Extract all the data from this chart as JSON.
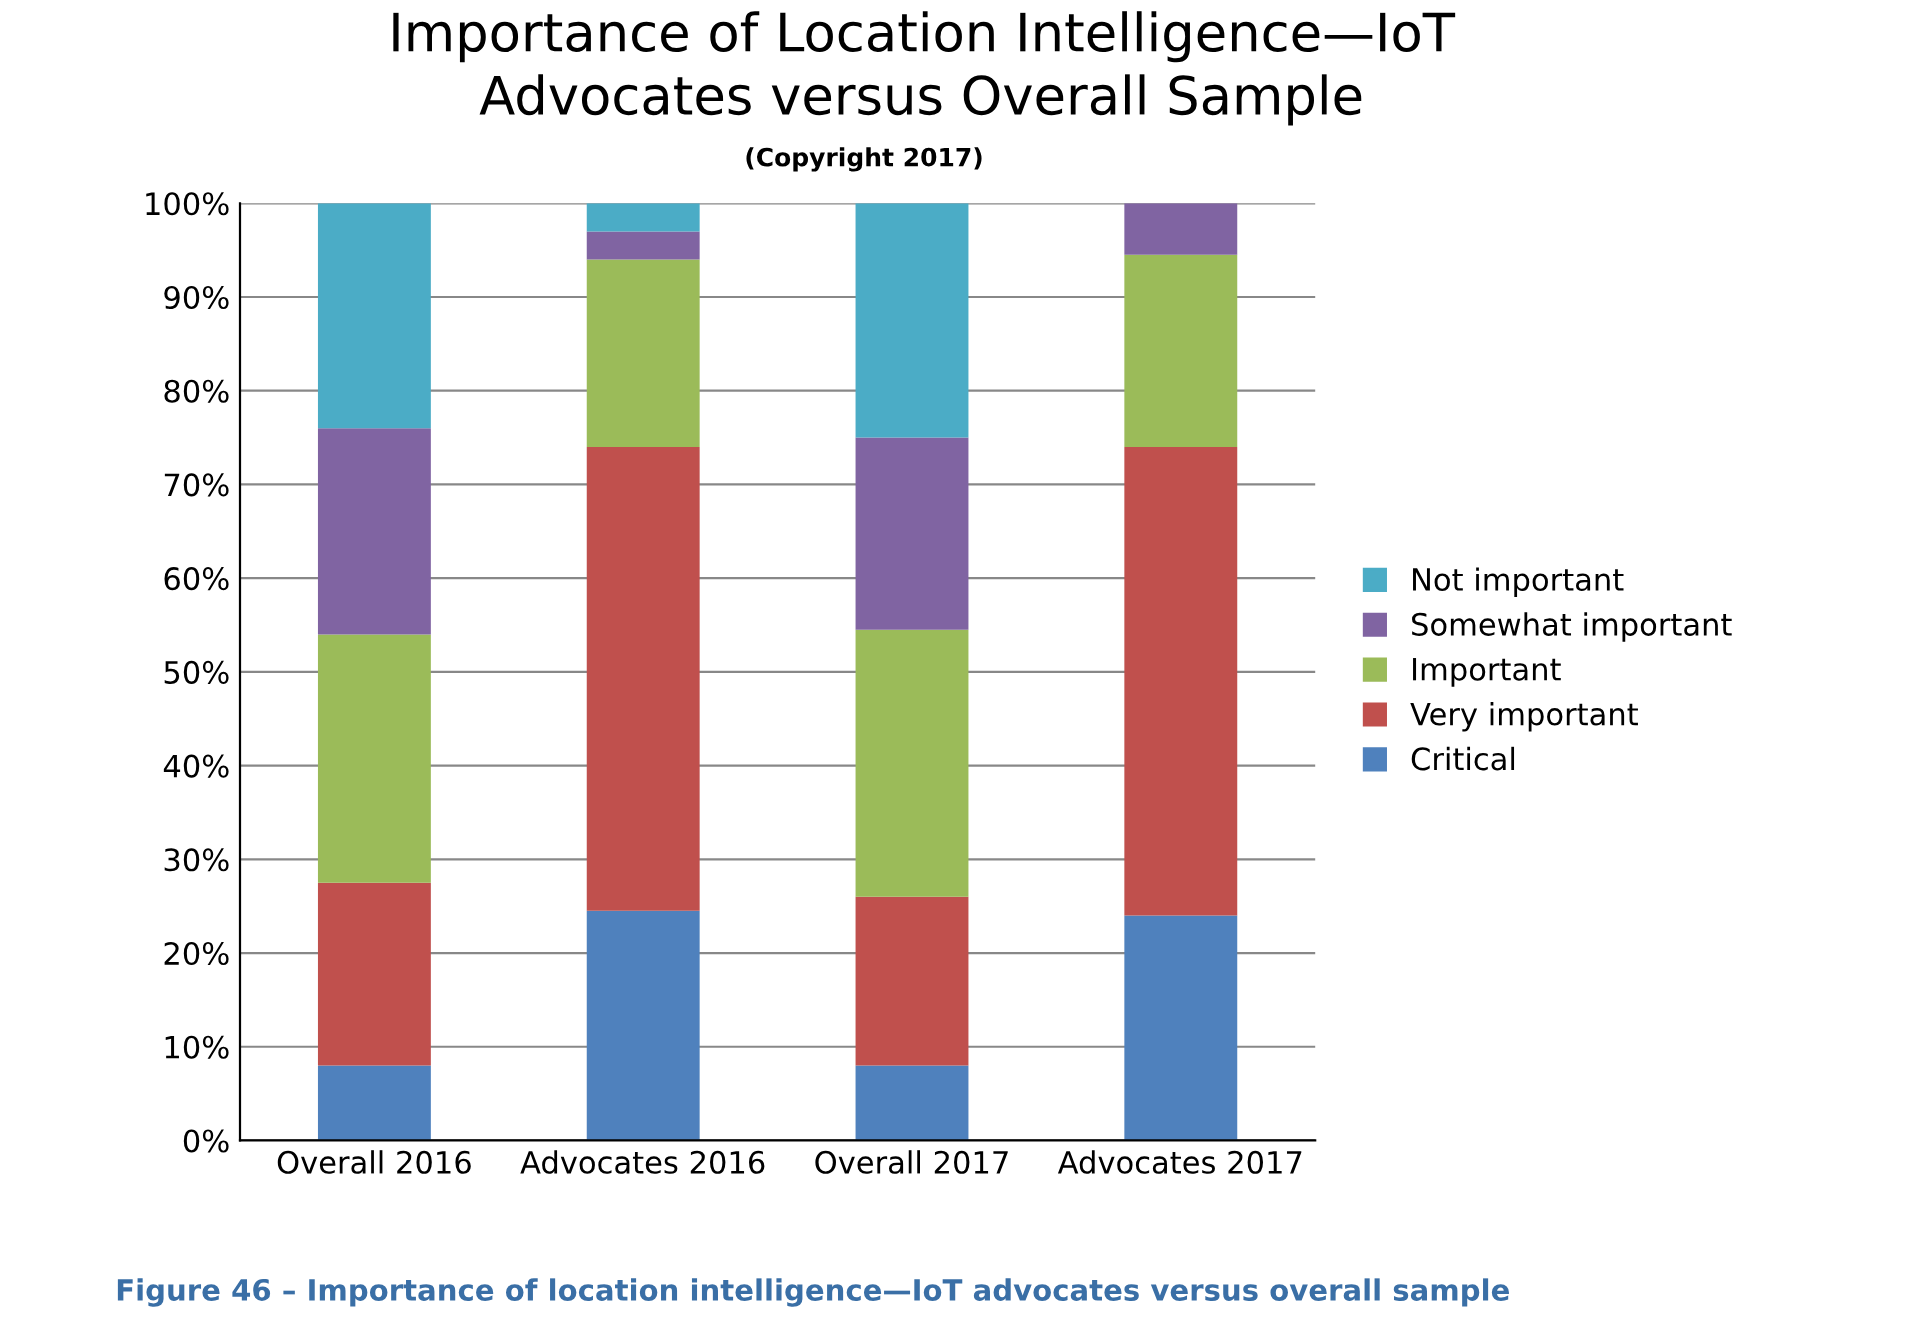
{
  "chart_data": {
    "type": "bar",
    "stacked": true,
    "title": "Importance of Location Intelligence—IoT\nAdvocates versus Overall Sample",
    "subtitle": "(Copyright 2017)",
    "categories": [
      "Overall 2016",
      "Advocates 2016",
      "Overall 2017",
      "Advocates 2017"
    ],
    "series": [
      {
        "name": "Critical",
        "color": "#4f81bd",
        "values": [
          8,
          24.5,
          8,
          24
        ]
      },
      {
        "name": "Very important",
        "color": "#c0504d",
        "values": [
          19.5,
          49.5,
          18,
          50
        ]
      },
      {
        "name": "Important",
        "color": "#9bbb59",
        "values": [
          26.5,
          20,
          28.5,
          20.5
        ]
      },
      {
        "name": "Somewhat important",
        "color": "#8064a2",
        "values": [
          22,
          3,
          20.5,
          5.5
        ]
      },
      {
        "name": "Not important",
        "color": "#4bacc6",
        "values": [
          24,
          3,
          25,
          0
        ]
      }
    ],
    "ylim": [
      0,
      100
    ],
    "yticks": [
      {
        "value": 0,
        "label": "0%"
      },
      {
        "value": 10,
        "label": "10%"
      },
      {
        "value": 20,
        "label": "20%"
      },
      {
        "value": 30,
        "label": "30%"
      },
      {
        "value": 40,
        "label": "40%"
      },
      {
        "value": 50,
        "label": "50%"
      },
      {
        "value": 60,
        "label": "60%"
      },
      {
        "value": 70,
        "label": "70%"
      },
      {
        "value": 80,
        "label": "80%"
      },
      {
        "value": 90,
        "label": "90%"
      },
      {
        "value": 100,
        "label": "100%"
      }
    ],
    "grid": "y",
    "legend": "right",
    "annotations": [
      "Figure 46 – Importance of location intelligence—IoT advocates versus overall sample"
    ]
  }
}
